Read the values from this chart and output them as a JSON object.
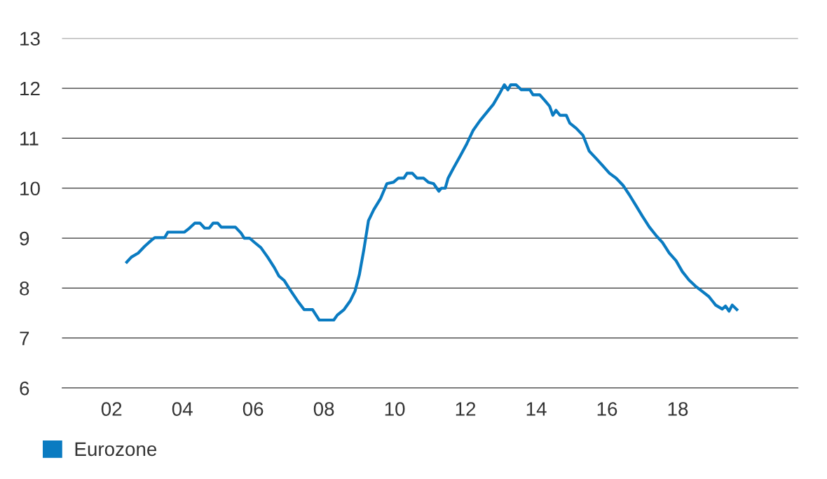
{
  "chart_data": {
    "type": "line",
    "series": [
      {
        "name": "Eurozone",
        "color": "#0a7bc1",
        "x": [
          2002.43,
          2002.56,
          2002.75,
          2002.94,
          2003.13,
          2003.22,
          2003.5,
          2003.59,
          2004.06,
          2004.2,
          2004.35,
          2004.5,
          2004.63,
          2004.76,
          2004.87,
          2005.0,
          2005.1,
          2005.5,
          2005.66,
          2005.75,
          2005.9,
          2006.03,
          2006.22,
          2006.41,
          2006.6,
          2006.73,
          2006.88,
          2006.97,
          2007.07,
          2007.25,
          2007.44,
          2007.68,
          2007.87,
          2008.28,
          2008.38,
          2008.57,
          2008.75,
          2008.88,
          2009.0,
          2009.13,
          2009.26,
          2009.41,
          2009.6,
          2009.78,
          2009.97,
          2010.1,
          2010.26,
          2010.35,
          2010.5,
          2010.63,
          2010.82,
          2010.95,
          2011.1,
          2011.25,
          2011.32,
          2011.43,
          2011.51,
          2011.66,
          2011.85,
          2012.04,
          2012.22,
          2012.41,
          2012.56,
          2012.79,
          2012.97,
          2013.1,
          2013.2,
          2013.28,
          2013.43,
          2013.58,
          2013.82,
          2013.91,
          2014.1,
          2014.25,
          2014.38,
          2014.47,
          2014.56,
          2014.67,
          2014.85,
          2014.95,
          2015.13,
          2015.32,
          2015.5,
          2015.7,
          2015.88,
          2016.07,
          2016.26,
          2016.45,
          2016.63,
          2016.82,
          2017.0,
          2017.2,
          2017.38,
          2017.57,
          2017.76,
          2017.95,
          2018.13,
          2018.32,
          2018.5,
          2018.7,
          2018.88,
          2019.07,
          2019.26,
          2019.35,
          2019.45,
          2019.54,
          2019.67
        ],
        "values": [
          8.52,
          8.62,
          8.7,
          8.84,
          8.96,
          9.01,
          9.01,
          9.12,
          9.12,
          9.2,
          9.3,
          9.3,
          9.2,
          9.2,
          9.3,
          9.3,
          9.22,
          9.22,
          9.1,
          9.0,
          9.0,
          8.92,
          8.81,
          8.62,
          8.41,
          8.24,
          8.15,
          8.05,
          7.94,
          7.75,
          7.57,
          7.57,
          7.36,
          7.36,
          7.46,
          7.57,
          7.75,
          7.94,
          8.26,
          8.77,
          9.35,
          9.57,
          9.79,
          10.09,
          10.12,
          10.2,
          10.2,
          10.3,
          10.3,
          10.2,
          10.2,
          10.12,
          10.09,
          9.94,
          10.0,
          10.0,
          10.2,
          10.4,
          10.64,
          10.89,
          11.16,
          11.35,
          11.48,
          11.68,
          11.9,
          12.07,
          11.97,
          12.07,
          12.07,
          11.97,
          11.97,
          11.87,
          11.87,
          11.75,
          11.64,
          11.46,
          11.56,
          11.46,
          11.46,
          11.3,
          11.2,
          11.06,
          10.74,
          10.59,
          10.45,
          10.3,
          10.2,
          10.06,
          9.87,
          9.65,
          9.44,
          9.22,
          9.06,
          8.91,
          8.7,
          8.55,
          8.33,
          8.16,
          8.04,
          7.93,
          7.83,
          7.66,
          7.58,
          7.64,
          7.54,
          7.66,
          7.57
        ]
      }
    ],
    "xlim": [
      2000.6,
      2021.4
    ],
    "xticks": [
      {
        "value": 2002,
        "label": "02"
      },
      {
        "value": 2004,
        "label": "04"
      },
      {
        "value": 2006,
        "label": "06"
      },
      {
        "value": 2008,
        "label": "08"
      },
      {
        "value": 2010,
        "label": "10"
      },
      {
        "value": 2012,
        "label": "12"
      },
      {
        "value": 2014,
        "label": "14"
      },
      {
        "value": 2016,
        "label": "16"
      },
      {
        "value": 2018,
        "label": "18"
      }
    ],
    "ylim": [
      6,
      13
    ],
    "yticks": [
      6,
      7,
      8,
      9,
      10,
      11,
      12,
      13
    ],
    "grid": "y",
    "legend": "bottom left",
    "marker": "none",
    "line_style": "solid"
  }
}
